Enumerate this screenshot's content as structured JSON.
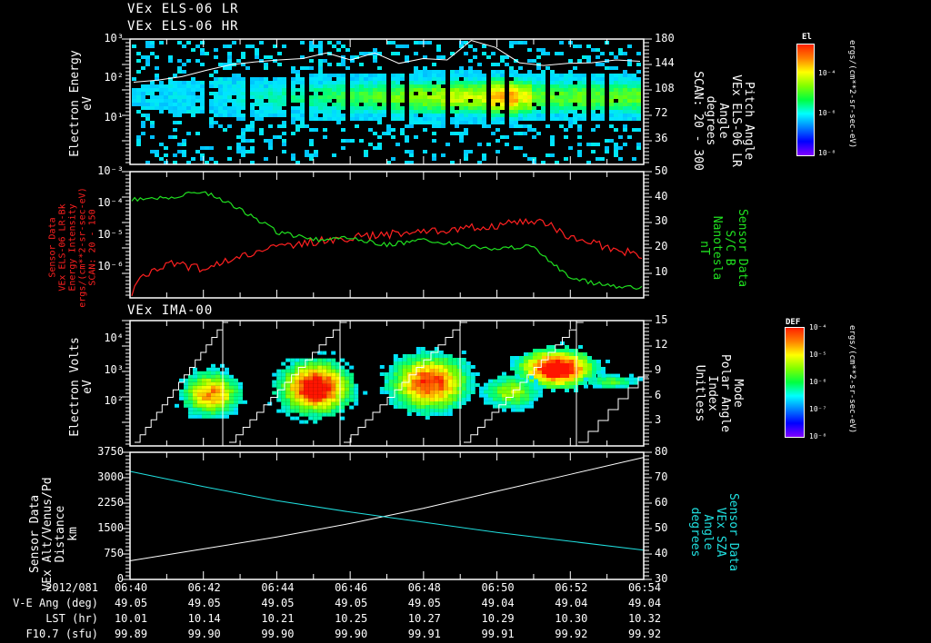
{
  "titles": {
    "panel1_line1": "VEx ELS-06 LR",
    "panel1_line2": "VEx ELS-06 HR",
    "panel3": "VEx IMA-00"
  },
  "panel1": {
    "left_label": [
      "Electron Energy",
      "eV"
    ],
    "right_label": [
      "Pitch Angle",
      "VEx ELS-06 LR",
      "Angle",
      "degrees",
      "SCAN: 20 - 300"
    ],
    "left_ticks": [
      "10³",
      "10²",
      "10¹"
    ],
    "right_ticks": [
      "180",
      "144",
      "108",
      "72",
      "36"
    ],
    "colorbar": {
      "title": "El",
      "labels": [
        "10⁻⁴",
        "10⁻⁶",
        "10⁻⁸"
      ],
      "unit": "ergs/(cm**2-sr-sec-eV)"
    }
  },
  "panel2": {
    "left_label": [
      "Sensor Data",
      "VEx ELS-06 LR-Bk",
      "Energy Intensity",
      "ergs/(cm**2-sr-sec-eV)",
      "SCAN: 20 - 150"
    ],
    "right_label": [
      "Sensor Data",
      "S/C B",
      "Nanotesla",
      "nT"
    ],
    "left_ticks": [
      "10⁻³",
      "10⁻⁴",
      "10⁻⁵",
      "10⁻⁶"
    ],
    "right_ticks": [
      "50",
      "40",
      "30",
      "20",
      "10"
    ],
    "left_color": "#ff2020",
    "right_color": "#20e020"
  },
  "panel3": {
    "left_label": [
      "Electron Volts",
      "eV"
    ],
    "right_label": [
      "Mode",
      "Polar Angle",
      "Index",
      "Unitless"
    ],
    "left_ticks": [
      "10⁴",
      "10³",
      "10²"
    ],
    "right_ticks": [
      "15",
      "12",
      "9",
      "6",
      "3"
    ],
    "colorbar": {
      "title": "DEF",
      "labels": [
        "10⁻⁴",
        "10⁻⁵",
        "10⁻⁶",
        "10⁻⁷",
        "10⁻⁸"
      ],
      "unit": "ergs/(cm**2-sr-sec-eV)"
    }
  },
  "panel4": {
    "left_label": [
      "Sensor Data",
      "VEx Alt/Venus/Pd",
      "Distance",
      "km"
    ],
    "right_label": [
      "Sensor Data",
      "VEx SZA",
      "Angle",
      "degrees"
    ],
    "left_ticks": [
      "3750",
      "3000",
      "2250",
      "1500",
      "750",
      "0"
    ],
    "right_ticks": [
      "80",
      "70",
      "60",
      "50",
      "40",
      "30"
    ],
    "right_color": "#20e0e0"
  },
  "footer": {
    "row_labels": [
      "2012/081",
      "V-E Ang (deg)",
      "LST (hr)",
      "F10.7 (sfu)"
    ],
    "times": [
      "06:40",
      "06:42",
      "06:44",
      "06:46",
      "06:48",
      "06:50",
      "06:52",
      "06:54"
    ],
    "ve_ang": [
      "49.05",
      "49.05",
      "49.05",
      "49.05",
      "49.05",
      "49.04",
      "49.04",
      "49.04"
    ],
    "lst": [
      "10.01",
      "10.14",
      "10.21",
      "10.25",
      "10.27",
      "10.29",
      "10.30",
      "10.32"
    ],
    "f107": [
      "99.89",
      "99.90",
      "99.90",
      "99.90",
      "99.91",
      "99.91",
      "99.92",
      "99.92"
    ]
  },
  "chart_data": [
    {
      "type": "heatmap",
      "title": "VEx ELS-06 LR / HR",
      "xlabel": "UT 2012/081",
      "ylabel": "Electron Energy (eV)",
      "y_scale": "log",
      "ylim": [
        3,
        1000
      ],
      "x": [
        "06:40",
        "06:42",
        "06:44",
        "06:46",
        "06:48",
        "06:50",
        "06:52",
        "06:54"
      ],
      "overlay_line": {
        "name": "Pitch Angle (deg)",
        "ylim": [
          0,
          180
        ],
        "values": [
          118,
          121,
          126,
          135,
          143,
          147,
          150,
          152,
          160,
          150,
          160,
          145,
          152,
          150,
          178,
          168,
          146,
          142,
          145,
          146,
          150,
          148
        ]
      },
      "intensity_peak_time": "06:51",
      "colorbar_range": [
        1e-08,
        0.001
      ]
    },
    {
      "type": "line",
      "title": "VEx ELS-06 LR-Bk Energy Intensity and S/C B",
      "x": [
        "06:40",
        "06:41",
        "06:42",
        "06:43",
        "06:44",
        "06:45",
        "06:46",
        "06:47",
        "06:48",
        "06:49",
        "06:50",
        "06:51",
        "06:52",
        "06:53",
        "06:54"
      ],
      "series": [
        {
          "name": "Energy Intensity (ergs/(cm**2-sr-sec-eV))",
          "axis": "left",
          "scale": "log",
          "color": "#ff2020",
          "values": [
            1e-07,
            1.2e-06,
            8e-07,
            2e-06,
            4e-06,
            6e-06,
            8e-06,
            1e-05,
            1.3e-05,
            1.5e-05,
            2e-05,
            3e-05,
            8e-06,
            4e-06,
            2e-06
          ]
        },
        {
          "name": "S/C B (nT)",
          "axis": "right",
          "scale": "linear",
          "color": "#20e020",
          "values": [
            39,
            40,
            42,
            35,
            26,
            23,
            24,
            21,
            23,
            21,
            19,
            21,
            8,
            5,
            4
          ]
        }
      ],
      "ylim_left": [
        1e-07,
        0.001
      ],
      "ylim_right": [
        0,
        50
      ]
    },
    {
      "type": "heatmap",
      "title": "VEx IMA-00",
      "ylabel": "Electron Volts (eV)",
      "y_scale": "log",
      "ylim": [
        10,
        50000
      ],
      "overlay_line": {
        "name": "Mode Polar Angle Index",
        "ylim": [
          0,
          15
        ],
        "pattern": "staircase 0-15 repeating",
        "resets": [
          "06:42.8",
          "06:46.0",
          "06:49.2",
          "06:52.3"
        ]
      },
      "blobs": [
        {
          "time": "06:41.8",
          "energy_eV": 300
        },
        {
          "time": "06:45.0",
          "energy_eV": 600
        },
        {
          "time": "06:48.0",
          "energy_eV": 500
        },
        {
          "time": "06:51.5",
          "energy_eV": 1200
        }
      ],
      "colorbar_range": [
        1e-08,
        0.0001
      ]
    },
    {
      "type": "line",
      "title": "VEx Alt/Venus/Pd Distance and SZA",
      "x": [
        "06:40",
        "06:42",
        "06:44",
        "06:46",
        "06:48",
        "06:50",
        "06:52",
        "06:54"
      ],
      "series": [
        {
          "name": "Distance (km)",
          "axis": "left",
          "color": "#ffffff",
          "values": [
            550,
            900,
            1250,
            1650,
            2100,
            2600,
            3100,
            3600
          ]
        },
        {
          "name": "SZA (deg)",
          "axis": "right",
          "color": "#20e0e0",
          "values": [
            72.5,
            66.5,
            61,
            56.5,
            52.5,
            48.5,
            45,
            41.5
          ]
        }
      ],
      "ylim_left": [
        0,
        3750
      ],
      "ylim_right": [
        30,
        80
      ]
    }
  ]
}
